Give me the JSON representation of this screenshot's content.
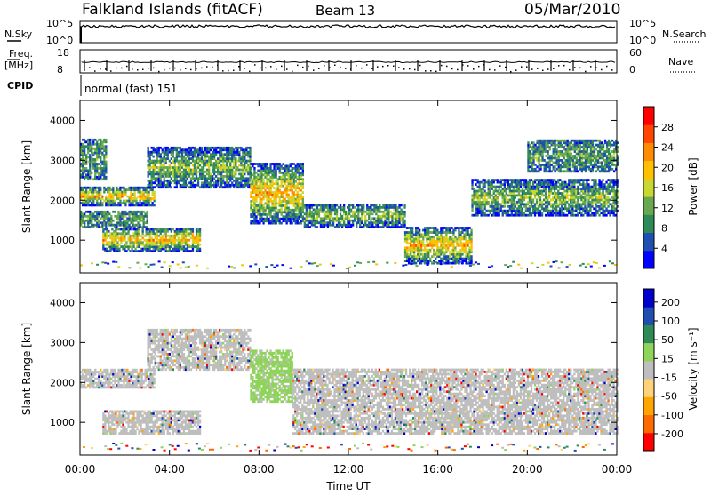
{
  "header": {
    "station": "Falkland Islands (fitACF)",
    "beam": "Beam 13",
    "date": "05/Mar/2010"
  },
  "top_panels": {
    "nsky_label": "N.Sky",
    "nsearch_label": "N.Search",
    "nsky_ticks": [
      "10^5",
      "10^0"
    ],
    "nsearch_ticks": [
      "10^5",
      "10^0"
    ],
    "freq_label_1": "Freq.",
    "freq_label_2": "[MHz]",
    "freq_ticks": [
      "18",
      "8"
    ],
    "nave_label": "Nave",
    "nave_ticks": [
      "60",
      "0"
    ],
    "cpid_label": "CPID",
    "cpid_value": "normal (fast) 151"
  },
  "x_axis": {
    "label": "Time UT",
    "ticks": [
      "00:00",
      "04:00",
      "08:00",
      "12:00",
      "16:00",
      "20:00",
      "00:00"
    ]
  },
  "colors": {
    "power": [
      "#0000ff",
      "#1f4fb0",
      "#2e8b57",
      "#6aa84f",
      "#c8d830",
      "#ffc000",
      "#ff8c00",
      "#ff4500",
      "#ff0000"
    ],
    "velocity": [
      "#ff0000",
      "#ff6a00",
      "#ffa500",
      "#ffd27a",
      "#bebebe",
      "#8fd45a",
      "#2e8b57",
      "#1f4fb0",
      "#0000cd"
    ]
  },
  "chart_data": [
    {
      "type": "heatmap",
      "title": "",
      "xlabel": "",
      "ylabel": "Slant Range [km]",
      "xlim": [
        0,
        24
      ],
      "ylim": [
        180,
        4500
      ],
      "yticks": [
        "1000",
        "2000",
        "3000",
        "4000"
      ],
      "colorbar": {
        "label": "Power [dB]",
        "ticks": [
          "4",
          "8",
          "12",
          "16",
          "20",
          "24",
          "28"
        ],
        "range": [
          0,
          30
        ]
      },
      "bands": [
        {
          "t": [
            0,
            3.3
          ],
          "r": [
            1850,
            2300
          ],
          "level": "high"
        },
        {
          "t": [
            0,
            1.2
          ],
          "r": [
            2500,
            3500
          ],
          "level": "low"
        },
        {
          "t": [
            0,
            3.0
          ],
          "r": [
            1300,
            1700
          ],
          "level": "low"
        },
        {
          "t": [
            1.0,
            5.4
          ],
          "r": [
            700,
            1300
          ],
          "level": "high"
        },
        {
          "t": [
            3.0,
            7.6
          ],
          "r": [
            2300,
            3300
          ],
          "level": "mid"
        },
        {
          "t": [
            7.6,
            10.0
          ],
          "r": [
            1400,
            2900
          ],
          "level": "high"
        },
        {
          "t": [
            10.0,
            14.5
          ],
          "r": [
            1300,
            1900
          ],
          "level": "mid"
        },
        {
          "t": [
            14.5,
            17.5
          ],
          "r": [
            400,
            1300
          ],
          "level": "high"
        },
        {
          "t": [
            17.5,
            24
          ],
          "r": [
            1600,
            2500
          ],
          "level": "mid"
        },
        {
          "t": [
            20.0,
            24
          ],
          "r": [
            2700,
            3500
          ],
          "level": "low"
        }
      ]
    },
    {
      "type": "heatmap",
      "title": "",
      "xlabel": "Time UT",
      "ylabel": "Slant Range [km]",
      "xlim": [
        0,
        24
      ],
      "ylim": [
        180,
        4500
      ],
      "yticks": [
        "1000",
        "2000",
        "3000",
        "4000"
      ],
      "colorbar": {
        "label": "Velocity [m s⁻¹]",
        "ticks": [
          "200",
          "100",
          "50",
          "15",
          "-15",
          "-50",
          "-100",
          "-200"
        ],
        "range": [
          -250,
          250
        ]
      },
      "bands": [
        {
          "t": [
            0,
            3.3
          ],
          "r": [
            1850,
            2300
          ],
          "level": "ground"
        },
        {
          "t": [
            1.0,
            5.4
          ],
          "r": [
            700,
            1300
          ],
          "level": "ground"
        },
        {
          "t": [
            3.0,
            7.6
          ],
          "r": [
            2300,
            3300
          ],
          "level": "ground"
        },
        {
          "t": [
            7.6,
            9.5
          ],
          "r": [
            1500,
            2800
          ],
          "level": "positive"
        },
        {
          "t": [
            9.5,
            24
          ],
          "r": [
            700,
            2300
          ],
          "level": "ground"
        }
      ]
    }
  ]
}
